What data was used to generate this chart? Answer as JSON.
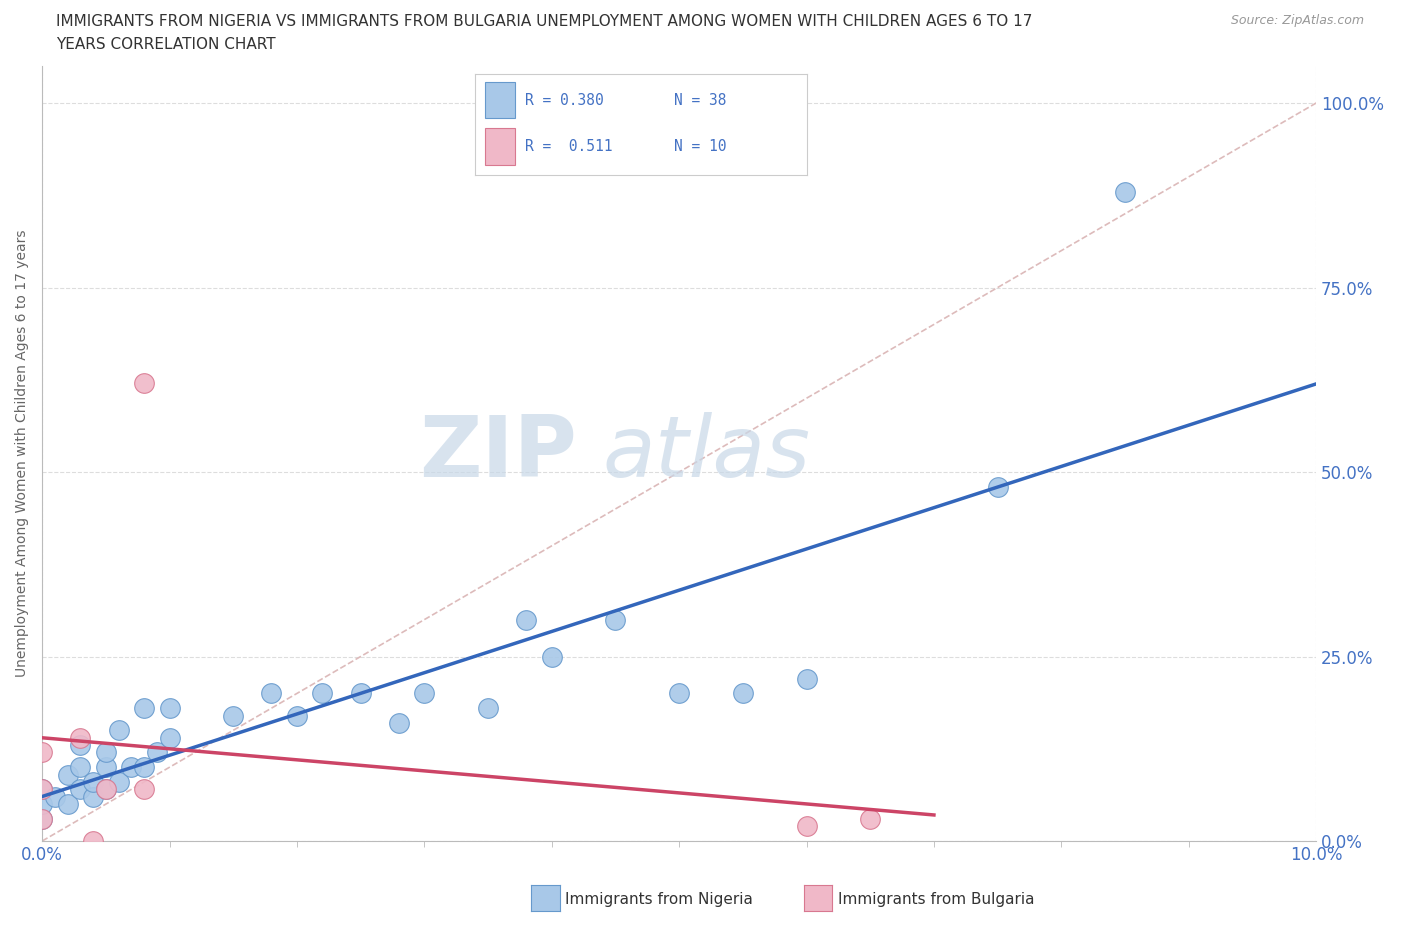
{
  "title_line1": "IMMIGRANTS FROM NIGERIA VS IMMIGRANTS FROM BULGARIA UNEMPLOYMENT AMONG WOMEN WITH CHILDREN AGES 6 TO 17",
  "title_line2": "YEARS CORRELATION CHART",
  "source": "Source: ZipAtlas.com",
  "ylabel": "Unemployment Among Women with Children Ages 6 to 17 years",
  "xlim": [
    0.0,
    0.1
  ],
  "ylim": [
    0.0,
    1.05
  ],
  "xtick_positions": [
    0.0,
    0.1
  ],
  "xtick_labels": [
    "0.0%",
    "10.0%"
  ],
  "xtick_minor": [
    0.01,
    0.02,
    0.03,
    0.04,
    0.05,
    0.06,
    0.07,
    0.08,
    0.09
  ],
  "ytick_values": [
    0.0,
    0.25,
    0.5,
    0.75,
    1.0
  ],
  "ytick_labels": [
    "0.0%",
    "25.0%",
    "50.0%",
    "75.0%",
    "100.0%"
  ],
  "nigeria_color": "#a8c8e8",
  "nigeria_edge": "#6699cc",
  "bulgaria_color": "#f0b8c8",
  "bulgaria_edge": "#d87890",
  "nigeria_R": 0.38,
  "nigeria_N": 38,
  "bulgaria_R": 0.511,
  "bulgaria_N": 10,
  "watermark_zip": "ZIP",
  "watermark_atlas": "atlas",
  "nigeria_x": [
    0.0,
    0.0,
    0.0,
    0.001,
    0.002,
    0.002,
    0.003,
    0.003,
    0.003,
    0.004,
    0.004,
    0.005,
    0.005,
    0.005,
    0.006,
    0.006,
    0.007,
    0.008,
    0.008,
    0.009,
    0.01,
    0.01,
    0.015,
    0.018,
    0.02,
    0.022,
    0.025,
    0.028,
    0.03,
    0.035,
    0.038,
    0.04,
    0.045,
    0.05,
    0.055,
    0.06,
    0.075,
    0.085
  ],
  "nigeria_y": [
    0.03,
    0.05,
    0.07,
    0.06,
    0.05,
    0.09,
    0.07,
    0.1,
    0.13,
    0.06,
    0.08,
    0.07,
    0.1,
    0.12,
    0.08,
    0.15,
    0.1,
    0.1,
    0.18,
    0.12,
    0.14,
    0.18,
    0.17,
    0.2,
    0.17,
    0.2,
    0.2,
    0.16,
    0.2,
    0.18,
    0.3,
    0.25,
    0.3,
    0.2,
    0.2,
    0.22,
    0.48,
    0.88
  ],
  "bulgaria_x": [
    0.0,
    0.0,
    0.0,
    0.003,
    0.004,
    0.005,
    0.008,
    0.008,
    0.06,
    0.065
  ],
  "bulgaria_y": [
    0.03,
    0.07,
    0.12,
    0.14,
    0.0,
    0.07,
    0.07,
    0.62,
    0.02,
    0.03
  ],
  "diag_line_color": "#ddbbbb",
  "trend_nigeria_color": "#3366bb",
  "trend_bulgaria_color": "#cc4466",
  "background_color": "#ffffff",
  "legend_text_color": "#4472c4",
  "legend_border_color": "#cccccc",
  "axis_color": "#bbbbbb",
  "tick_color": "#888888",
  "grid_color": "#dddddd"
}
